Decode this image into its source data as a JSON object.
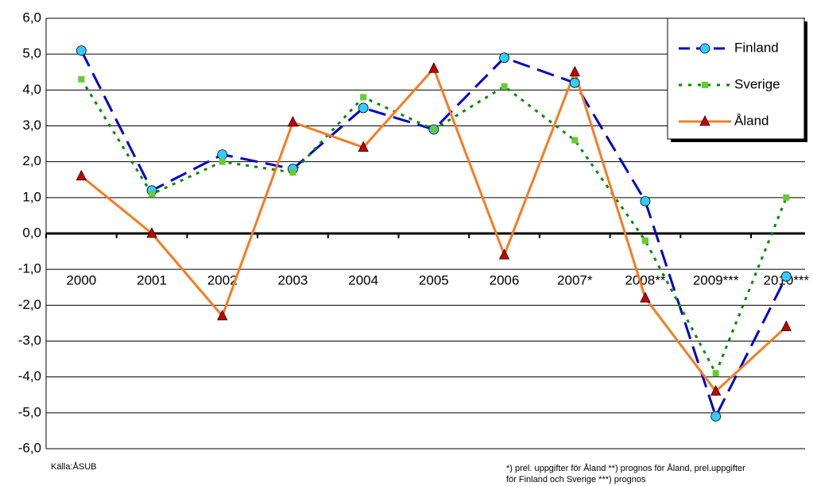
{
  "chart_data": {
    "type": "line",
    "categories": [
      "2000",
      "2001",
      "2002",
      "2003",
      "2004",
      "2005",
      "2006",
      "2007*",
      "2008**",
      "2009***",
      "2010***"
    ],
    "series": [
      {
        "name": "Finland",
        "color": "#0000cc",
        "marker_color": "#33ccff",
        "values": [
          5.1,
          1.2,
          2.2,
          1.8,
          3.5,
          2.9,
          4.9,
          4.2,
          0.9,
          -5.1,
          -1.2
        ]
      },
      {
        "name": "Sverige",
        "color": "#008800",
        "marker_color": "#66cc33",
        "values": [
          4.3,
          1.1,
          2.0,
          1.7,
          3.8,
          2.9,
          4.1,
          2.6,
          -0.2,
          -3.9,
          1.0
        ]
      },
      {
        "name": "Åland",
        "color": "#f57c20",
        "marker_color": "#cc0000",
        "values": [
          1.6,
          0.0,
          -2.3,
          3.1,
          2.4,
          4.6,
          -0.6,
          4.5,
          -1.8,
          -4.4,
          -2.6
        ]
      }
    ],
    "ylim": [
      -6,
      6
    ],
    "yticks": [
      {
        "value": -6,
        "label": "-6,0"
      },
      {
        "value": -5,
        "label": "-5,0"
      },
      {
        "value": -4,
        "label": "-4,0"
      },
      {
        "value": -3,
        "label": "-3,0"
      },
      {
        "value": -2,
        "label": "-2,0"
      },
      {
        "value": -1,
        "label": "-1,0"
      },
      {
        "value": 0,
        "label": "0,0"
      },
      {
        "value": 1,
        "label": "1,0"
      },
      {
        "value": 2,
        "label": "2,0"
      },
      {
        "value": 3,
        "label": "3,0"
      },
      {
        "value": 4,
        "label": "4,0"
      },
      {
        "value": 5,
        "label": "5,0"
      },
      {
        "value": 6,
        "label": "6,0"
      }
    ],
    "grid": true,
    "legend": "top-right",
    "source": "Källa:ÅSUB",
    "notes": [
      "*) prel. uppgifter för Åland  **) prognos  för Åland, prel.uppgifter",
      "för Finland och Sverige ***) prognos"
    ]
  }
}
